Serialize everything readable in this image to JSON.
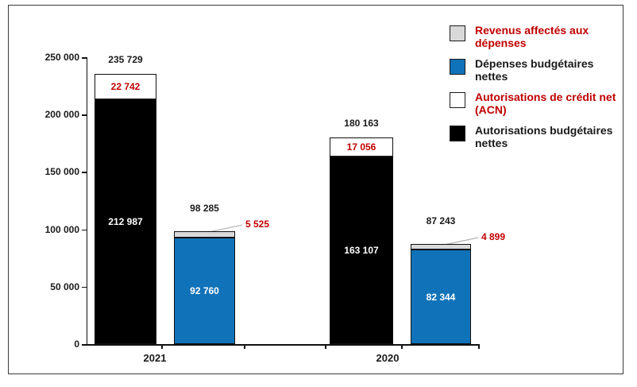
{
  "figure": {
    "background": "#ffffff",
    "border_color": "#3a3a3a"
  },
  "chart_data": {
    "type": "bar",
    "stacked": true,
    "grid": false,
    "categories": [
      "2021",
      "2020"
    ],
    "y_axis": {
      "max": 250000,
      "ticks": [
        {
          "value": 0,
          "label": "0"
        },
        {
          "value": 50000,
          "label": "50 000"
        },
        {
          "value": 100000,
          "label": "100 000"
        },
        {
          "value": 150000,
          "label": "150 000"
        },
        {
          "value": 200000,
          "label": "200 000"
        },
        {
          "value": 250000,
          "label": "250 000"
        }
      ]
    },
    "groups": [
      {
        "category": "2021",
        "bars": [
          {
            "total_value": 235729,
            "total_label": "235 729",
            "segments": [
              {
                "series": "Autorisations budgétaires nettes",
                "value": 212987,
                "label": "212 987",
                "color": "#000000",
                "label_color": "#ffffff",
                "label_placement": "inside"
              },
              {
                "series": "Autorisations de crédit net (ACN)",
                "value": 22742,
                "label": "22 742",
                "color": "#ffffff",
                "label_color": "#c00000",
                "label_placement": "inside"
              }
            ]
          },
          {
            "total_value": 98285,
            "total_label": "98 285",
            "segments": [
              {
                "series": "Dépenses budgétaires nettes",
                "value": 92760,
                "label": "92 760",
                "color": "#1072b8",
                "label_color": "#ffffff",
                "label_placement": "inside"
              },
              {
                "series": "Revenus affectés aux dépenses",
                "value": 5525,
                "label": "5 525",
                "color": "#d9d9d9",
                "label_color": "#c00000",
                "label_placement": "callout"
              }
            ]
          }
        ]
      },
      {
        "category": "2020",
        "bars": [
          {
            "total_value": 180163,
            "total_label": "180 163",
            "segments": [
              {
                "series": "Autorisations budgétaires nettes",
                "value": 163107,
                "label": "163 107",
                "color": "#000000",
                "label_color": "#ffffff",
                "label_placement": "inside"
              },
              {
                "series": "Autorisations de crédit net (ACN)",
                "value": 17056,
                "label": "17 056",
                "color": "#ffffff",
                "label_color": "#c00000",
                "label_placement": "inside"
              }
            ]
          },
          {
            "total_value": 87243,
            "total_label": "87 243",
            "segments": [
              {
                "series": "Dépenses budgétaires nettes",
                "value": 82344,
                "label": "82 344",
                "color": "#1072b8",
                "label_color": "#ffffff",
                "label_placement": "inside"
              },
              {
                "series": "Revenus affectés aux dépenses",
                "value": 4899,
                "label": "4 899",
                "color": "#d9d9d9",
                "label_color": "#c00000",
                "label_placement": "callout"
              }
            ]
          }
        ]
      }
    ],
    "legend": {
      "position": "top-right",
      "items": [
        {
          "label": "Revenus affectés aux dépenses",
          "swatch_color": "#d9d9d9",
          "text_color": "#c00000"
        },
        {
          "label": "Dépenses budgétaires nettes",
          "swatch_color": "#1072b8",
          "text_color": "#1a1a1a"
        },
        {
          "label": "Autorisations de crédit net (ACN)",
          "swatch_color": "#ffffff",
          "text_color": "#c00000"
        },
        {
          "label": "Autorisations budgétaires nettes",
          "swatch_color": "#000000",
          "text_color": "#1a1a1a"
        }
      ]
    },
    "colors": {
      "accent_red": "#c00000",
      "bar_blue": "#1072b8",
      "bar_gray": "#d9d9d9",
      "bar_black": "#000000",
      "bar_white": "#ffffff",
      "leader_line": "#b3b3b3"
    }
  }
}
